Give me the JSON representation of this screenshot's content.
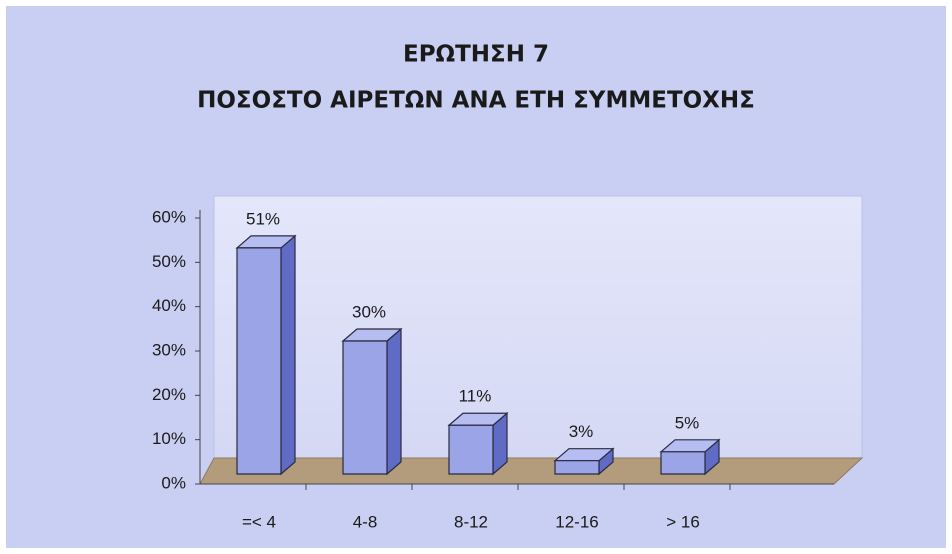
{
  "chart_data": {
    "type": "bar3d",
    "title": "ΕΡΩΤΗΣΗ 7",
    "subtitle": "ΠΟΣΟΣΤΟ ΑΙΡΕΤΩΝ ΑΝΑ ΕΤΗ ΣΥΜΜΕΤΟΧΗΣ",
    "categories": [
      "=< 4",
      "4-8",
      "8-12",
      "12-16",
      "> 16"
    ],
    "values": [
      51,
      30,
      11,
      3,
      5
    ],
    "value_labels": [
      "51%",
      "30%",
      "11%",
      "3%",
      "5%"
    ],
    "color": "#9aa4e6",
    "ylim": [
      0,
      60
    ],
    "yticks": [
      {
        "value": 0,
        "label": "0%"
      },
      {
        "value": 10,
        "label": "10%"
      },
      {
        "value": 20,
        "label": "20%"
      },
      {
        "value": 30,
        "label": "30%"
      },
      {
        "value": 40,
        "label": "40%"
      },
      {
        "value": 50,
        "label": "50%"
      },
      {
        "value": 60,
        "label": "60%"
      }
    ]
  }
}
